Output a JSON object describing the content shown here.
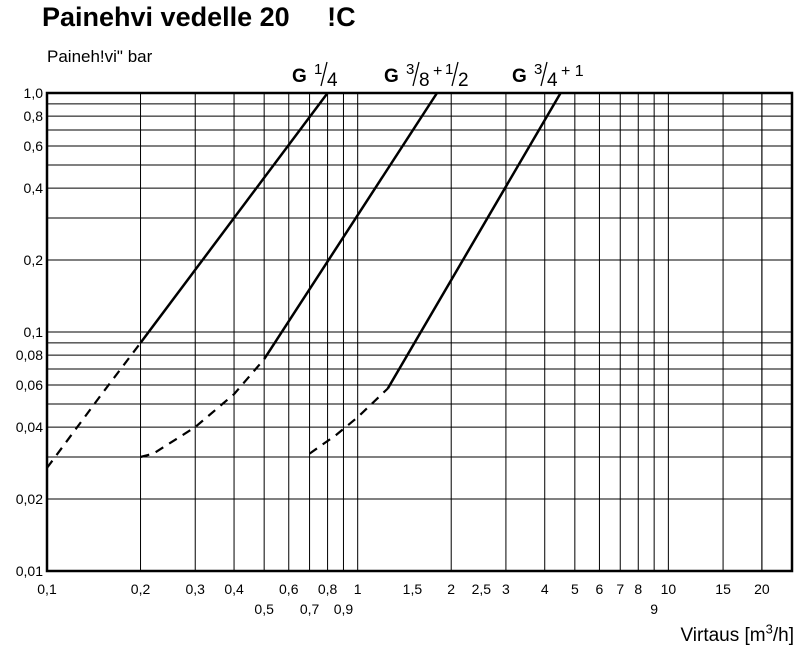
{
  "chart_data": {
    "type": "line",
    "title": "Painehvi vedelle 20     !C",
    "ylabel": "Paineh!vi\" bar",
    "xlabel": "Virtaus [m³/h]",
    "xscale": "log",
    "yscale": "log",
    "xlim": [
      0.1,
      25
    ],
    "ylim": [
      0.01,
      1.0
    ],
    "grid": true,
    "y_ticks": [
      "0,01",
      "0,02",
      "0,04",
      "0,06",
      "0,08",
      "0,1",
      "0,2",
      "0,4",
      "0,6",
      "0,8",
      "1,0"
    ],
    "y_tick_values": [
      0.01,
      0.02,
      0.04,
      0.06,
      0.08,
      0.1,
      0.2,
      0.4,
      0.6,
      0.8,
      1.0
    ],
    "x_ticks_upper": [
      "0,1",
      "0,2",
      "0,3",
      "0,4",
      "0,6",
      "0,8",
      "1",
      "1,5",
      "2",
      "2,5",
      "3",
      "4",
      "5",
      "6",
      "7",
      "8",
      "10",
      "15",
      "20"
    ],
    "x_ticks_upper_values": [
      0.1,
      0.2,
      0.3,
      0.4,
      0.6,
      0.8,
      1,
      1.5,
      2,
      2.5,
      3,
      4,
      5,
      6,
      7,
      8,
      10,
      15,
      20
    ],
    "x_ticks_lower": [
      "0,5",
      "0,7",
      "0,9",
      "9"
    ],
    "x_ticks_lower_values": [
      0.5,
      0.7,
      0.9,
      9
    ],
    "series": [
      {
        "name": "G 1/4",
        "label_main": "G",
        "label_frac_num": "1",
        "label_frac_den": "4",
        "label_suffix": "",
        "dashed": {
          "x": [
            0.1,
            0.15,
            0.2
          ],
          "y": [
            0.027,
            0.055,
            0.09
          ]
        },
        "solid": {
          "x": [
            0.2,
            0.8
          ],
          "y": [
            0.09,
            1.0
          ]
        }
      },
      {
        "name": "G 3/8 + 1/2",
        "label_main": "G",
        "label_frac_num": "3",
        "label_frac_den": "8",
        "label_suffix": "+",
        "label_frac2_num": "1",
        "label_frac2_den": "2",
        "dashed": {
          "x": [
            0.2,
            0.22,
            0.3,
            0.4,
            0.5
          ],
          "y": [
            0.03,
            0.031,
            0.04,
            0.055,
            0.077
          ]
        },
        "solid": {
          "x": [
            0.5,
            1.8
          ],
          "y": [
            0.077,
            1.0
          ]
        }
      },
      {
        "name": "G 3/4 + 1",
        "label_main": "G",
        "label_frac_num": "3",
        "label_frac_den": "4",
        "label_suffix": "+ 1",
        "dashed": {
          "x": [
            0.7,
            0.85,
            1.0,
            1.25
          ],
          "y": [
            0.031,
            0.037,
            0.044,
            0.058
          ]
        },
        "solid": {
          "x": [
            1.25,
            4.5
          ],
          "y": [
            0.058,
            1.0
          ]
        }
      }
    ]
  }
}
